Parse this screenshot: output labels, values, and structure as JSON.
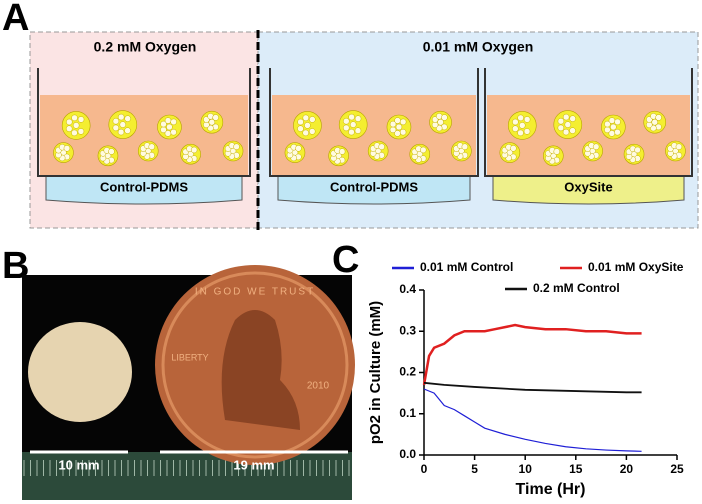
{
  "panel_a": {
    "letter": "A",
    "groups": [
      {
        "title": "0.2 mM Oxygen"
      },
      {
        "title": "0.01 mM Oxygen"
      }
    ],
    "wells": [
      {
        "base": "Control-PDMS"
      },
      {
        "base": "Control-PDMS"
      },
      {
        "base": "OxySite"
      }
    ]
  },
  "panel_b": {
    "letter": "B",
    "penny_motto": "IN GOD WE TRUST",
    "penny_word": "LIBERTY",
    "penny_year": "2010",
    "scale_labels": [
      "10 mm",
      "19 mm"
    ]
  },
  "chart_data": {
    "letter": "C",
    "type": "line",
    "xlabel": "Time (Hr)",
    "ylabel": "pO2 in Culture (mM)",
    "xlim": [
      0,
      25
    ],
    "xticks": [
      0,
      5,
      10,
      15,
      20,
      25
    ],
    "ylim": [
      0,
      0.4
    ],
    "yticks": [
      {
        "value": 0,
        "label": "0.0"
      },
      0.1,
      0.2,
      0.3,
      0.4
    ],
    "series": [
      {
        "name": "0.01 mM Control",
        "color": "#1f1fd6",
        "x": [
          0,
          1,
          2,
          3,
          4,
          5,
          6,
          8,
          10,
          12,
          14,
          16,
          18,
          20,
          21.5
        ],
        "values": [
          0.16,
          0.15,
          0.12,
          0.11,
          0.095,
          0.08,
          0.065,
          0.05,
          0.038,
          0.028,
          0.02,
          0.015,
          0.012,
          0.01,
          0.009
        ]
      },
      {
        "name": "0.01 mM OxySite",
        "color": "#e02020",
        "x": [
          0,
          0.5,
          1,
          2,
          3,
          4,
          5,
          6,
          7,
          8,
          9,
          10,
          12,
          14,
          16,
          18,
          20,
          21.5
        ],
        "values": [
          0.17,
          0.24,
          0.26,
          0.27,
          0.29,
          0.3,
          0.3,
          0.3,
          0.305,
          0.31,
          0.315,
          0.31,
          0.305,
          0.305,
          0.3,
          0.3,
          0.295,
          0.295
        ]
      },
      {
        "name": "0.2 mM Control",
        "color": "#111111",
        "x": [
          0,
          2,
          5,
          10,
          15,
          20,
          21.5
        ],
        "values": [
          0.175,
          0.17,
          0.165,
          0.158,
          0.155,
          0.152,
          0.152
        ]
      }
    ]
  }
}
